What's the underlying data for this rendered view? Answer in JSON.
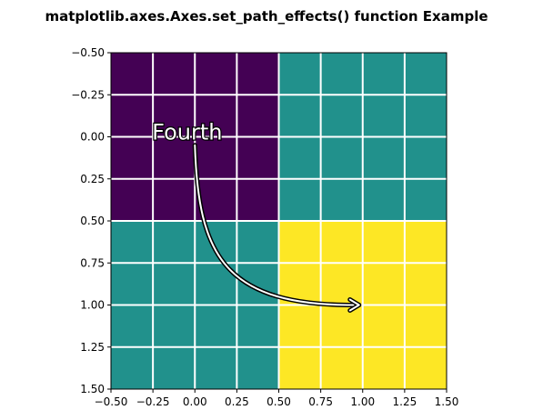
{
  "chart_data": {
    "type": "heatmap",
    "title": "matplotlib.axes.Axes.set_path_effects() function Example",
    "xlabel": "",
    "ylabel": "",
    "xlim": [
      -0.5,
      1.5
    ],
    "ylim": [
      1.5,
      -0.5
    ],
    "y_inverted": true,
    "grid": true,
    "grid_color": "#ffffff",
    "grid_divisions": 8,
    "x_ticks": [
      "−0.50",
      "−0.25",
      "0.00",
      "0.25",
      "0.50",
      "0.75",
      "1.00",
      "1.25",
      "1.50"
    ],
    "y_ticks": [
      "−0.50",
      "−0.25",
      "0.00",
      "0.25",
      "0.50",
      "0.75",
      "1.00",
      "1.25",
      "1.50"
    ],
    "tick_values": [
      -0.5,
      -0.25,
      0,
      0.25,
      0.5,
      0.75,
      1.0,
      1.25,
      1.5
    ],
    "matrix": [
      [
        0,
        1
      ],
      [
        1,
        2
      ]
    ],
    "colors": {
      "0": "#440154",
      "1": "#21918c",
      "2": "#fde725"
    },
    "annotation": {
      "text": "Fourth",
      "text_xy": [
        -0.25,
        0.0
      ],
      "arrow_from": [
        0.0,
        0.05
      ],
      "arrow_to": [
        1.0,
        1.0
      ],
      "text_color": "#ffffff",
      "outline_color": "#000000"
    }
  }
}
